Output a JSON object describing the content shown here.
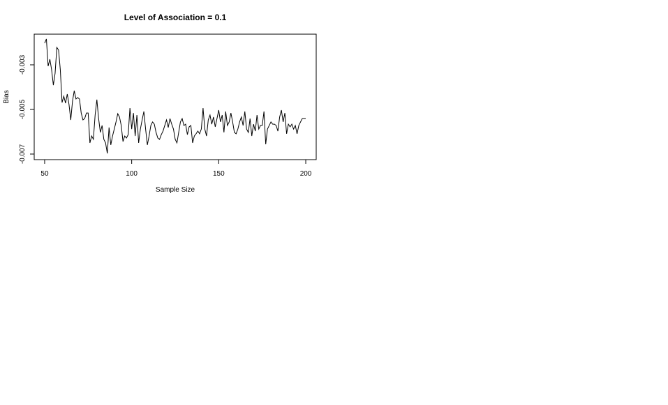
{
  "chart_data": {
    "type": "line",
    "title": "Level of Association = 0.1",
    "x_label": "Sample Size",
    "y_label": "Bias",
    "x": [
      50,
      51,
      52,
      53,
      54,
      55,
      56,
      57,
      58,
      59,
      60,
      61,
      62,
      63,
      64,
      65,
      66,
      67,
      68,
      69,
      70,
      71,
      72,
      73,
      74,
      75,
      76,
      77,
      78,
      79,
      80,
      81,
      82,
      83,
      84,
      85,
      86,
      87,
      88,
      89,
      90,
      91,
      92,
      93,
      94,
      95,
      96,
      97,
      98,
      99,
      100,
      101,
      102,
      103,
      104,
      105,
      106,
      107,
      108,
      109,
      110,
      111,
      112,
      113,
      114,
      115,
      116,
      117,
      118,
      119,
      120,
      121,
      122,
      123,
      124,
      125,
      126,
      127,
      128,
      129,
      130,
      131,
      132,
      133,
      134,
      135,
      136,
      137,
      138,
      139,
      140,
      141,
      142,
      143,
      144,
      145,
      146,
      147,
      148,
      149,
      150,
      151,
      152,
      153,
      154,
      155,
      156,
      157,
      158,
      159,
      160,
      161,
      162,
      163,
      164,
      165,
      166,
      167,
      168,
      169,
      170,
      171,
      172,
      173,
      174,
      175,
      176,
      177,
      178,
      179,
      180,
      181,
      182,
      183,
      184,
      185,
      186,
      187,
      188,
      189,
      190,
      191,
      192,
      193,
      194,
      195,
      196,
      197,
      198,
      199,
      200
    ],
    "series": [
      {
        "name": "Bias",
        "color": "#000000",
        "values": [
          -0.00203,
          -0.00184,
          -0.00306,
          -0.00275,
          -0.00322,
          -0.00391,
          -0.00338,
          -0.00222,
          -0.00234,
          -0.00322,
          -0.00469,
          -0.00441,
          -0.00472,
          -0.00431,
          -0.00478,
          -0.00547,
          -0.00463,
          -0.00416,
          -0.00453,
          -0.00447,
          -0.00453,
          -0.00516,
          -0.00547,
          -0.00541,
          -0.00516,
          -0.00516,
          -0.0065,
          -0.00619,
          -0.00634,
          -0.00525,
          -0.00456,
          -0.00541,
          -0.00603,
          -0.00572,
          -0.00634,
          -0.0065,
          -0.00697,
          -0.00581,
          -0.00659,
          -0.00619,
          -0.00588,
          -0.00556,
          -0.00519,
          -0.00534,
          -0.00572,
          -0.00644,
          -0.00619,
          -0.00628,
          -0.00613,
          -0.00494,
          -0.00588,
          -0.00516,
          -0.00619,
          -0.00525,
          -0.0065,
          -0.00588,
          -0.00547,
          -0.00509,
          -0.00588,
          -0.00659,
          -0.00619,
          -0.00572,
          -0.00556,
          -0.00566,
          -0.00603,
          -0.00628,
          -0.00634,
          -0.00613,
          -0.00597,
          -0.00572,
          -0.00547,
          -0.00581,
          -0.00541,
          -0.00566,
          -0.00588,
          -0.00634,
          -0.0065,
          -0.00603,
          -0.00556,
          -0.00541,
          -0.00572,
          -0.00566,
          -0.00613,
          -0.00578,
          -0.00572,
          -0.0065,
          -0.00619,
          -0.00609,
          -0.00597,
          -0.00609,
          -0.00588,
          -0.00494,
          -0.00588,
          -0.00619,
          -0.00547,
          -0.00525,
          -0.00566,
          -0.00534,
          -0.00578,
          -0.00541,
          -0.00503,
          -0.00556,
          -0.00525,
          -0.00603,
          -0.00509,
          -0.00572,
          -0.00556,
          -0.00516,
          -0.00556,
          -0.00603,
          -0.00609,
          -0.00588,
          -0.00556,
          -0.00534,
          -0.00572,
          -0.00509,
          -0.00588,
          -0.00603,
          -0.00541,
          -0.00619,
          -0.00566,
          -0.00597,
          -0.00525,
          -0.00588,
          -0.00572,
          -0.00572,
          -0.00509,
          -0.00656,
          -0.00588,
          -0.00572,
          -0.00556,
          -0.00566,
          -0.00566,
          -0.00572,
          -0.00597,
          -0.00534,
          -0.00503,
          -0.00556,
          -0.00516,
          -0.00609,
          -0.00566,
          -0.00578,
          -0.00566,
          -0.00588,
          -0.00572,
          -0.00609,
          -0.00572,
          -0.00556,
          -0.00541,
          -0.00541,
          -0.00541
        ]
      }
    ],
    "xlim": [
      44,
      206
    ],
    "xticks": [
      50,
      100,
      150,
      200
    ],
    "ylim": [
      -0.00725,
      -0.001625
    ],
    "yticks": [
      -0.007,
      -0.005,
      -0.003
    ]
  }
}
